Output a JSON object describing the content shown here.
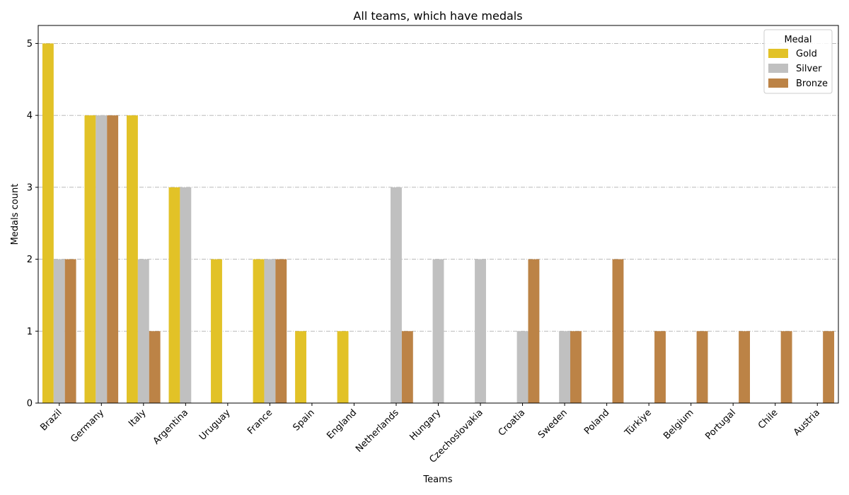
{
  "chart_data": {
    "type": "bar",
    "title": "All teams, which have medals",
    "xlabel": "Teams",
    "ylabel": "Medals count",
    "ylim": [
      0,
      5.25
    ],
    "yticks": [
      0,
      1,
      2,
      3,
      4,
      5
    ],
    "grid": "horizontal dash-dot",
    "legend": {
      "title": "Medal",
      "placement": "top-right"
    },
    "categories": [
      "Brazil",
      "Germany",
      "Italy",
      "Argentina",
      "Uruguay",
      "France",
      "Spain",
      "England",
      "Netherlands",
      "Hungary",
      "Czechoslovakia",
      "Croatia",
      "Sweden",
      "Poland",
      "Türkiye",
      "Belgium",
      "Portugal",
      "Chile",
      "Austria"
    ],
    "series": [
      {
        "name": "Gold",
        "color": "#e2c227",
        "values": [
          5,
          4,
          4,
          3,
          2,
          2,
          1,
          1,
          0,
          0,
          0,
          0,
          0,
          0,
          0,
          0,
          0,
          0,
          0
        ]
      },
      {
        "name": "Silver",
        "color": "#c0c0c0",
        "values": [
          2,
          4,
          2,
          3,
          0,
          2,
          0,
          0,
          3,
          2,
          2,
          1,
          1,
          0,
          0,
          0,
          0,
          0,
          0
        ]
      },
      {
        "name": "Bronze",
        "color": "#bc8346",
        "values": [
          2,
          4,
          1,
          0,
          0,
          2,
          0,
          0,
          1,
          0,
          0,
          2,
          1,
          2,
          1,
          1,
          1,
          1,
          1
        ]
      }
    ]
  }
}
